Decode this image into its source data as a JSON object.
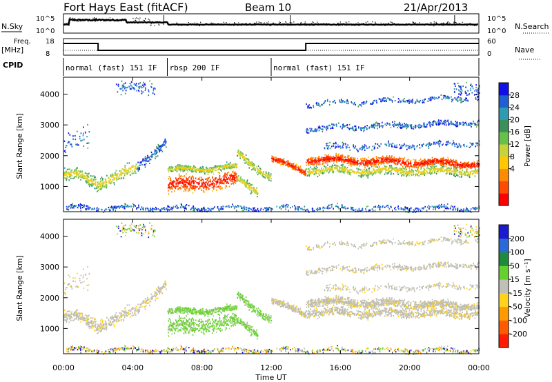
{
  "header": {
    "station": "Fort Hays East (fitACF)",
    "beam": "Beam 10",
    "date": "21/Apr/2013"
  },
  "panels": {
    "nsky_label": "N.Sky",
    "nsearch_label": "N.Search",
    "nsky_ticks": [
      "10^5",
      "10^0"
    ],
    "nsearch_ticks": [
      "10^5",
      "10^0"
    ],
    "freq_label_1": "Freq.",
    "freq_label_2": "[MHz]",
    "freq_ticks": [
      "18",
      "8"
    ],
    "nave_label": "Nave",
    "nave_ticks": [
      "60",
      "0"
    ],
    "cpid_label": "CPID",
    "cpid_segments": [
      {
        "label": "normal (fast) 151 IF",
        "start": 0,
        "end": 6
      },
      {
        "label": "rbsp 200 IF",
        "start": 6,
        "end": 12
      },
      {
        "label": "normal (fast) 151 IF",
        "start": 12,
        "end": 24
      }
    ]
  },
  "chart_data": [
    {
      "type": "heatmap",
      "name": "power",
      "ylabel": "Slant Range [km]",
      "ylim": [
        180,
        4550
      ],
      "yticks": [
        "1000",
        "2000",
        "3000",
        "4000"
      ],
      "colorbar_label": "Power [dB]",
      "colorbar_ticks": [
        "28",
        "24",
        "20",
        "16",
        "12",
        "8",
        "4"
      ],
      "colorbar_colors": [
        "#1010e6",
        "#1f5fd0",
        "#2e9bb0",
        "#3d8f5a",
        "#66c04a",
        "#c8d23a",
        "#ffc800",
        "#ff8c00",
        "#ff4a00",
        "#ff0000"
      ]
    },
    {
      "type": "heatmap",
      "name": "velocity",
      "ylabel": "Slant Range [km]",
      "ylim": [
        180,
        4550
      ],
      "yticks": [
        "1000",
        "2000",
        "3000",
        "4000"
      ],
      "colorbar_label": "Velocity [m s⁻¹]",
      "colorbar_ticks": [
        "200",
        "100",
        "50",
        "15",
        "-15",
        "-50",
        "-100",
        "-200"
      ],
      "colorbar_colors": [
        "#1a1ad0",
        "#2a6ad8",
        "#1f8a3a",
        "#66d030",
        "#c0c0b8",
        "#ffd21e",
        "#ff9a00",
        "#ff5a00",
        "#ff1a00"
      ]
    }
  ],
  "xaxis": {
    "label": "Time UT",
    "xlim": [
      0,
      24
    ],
    "ticks": [
      "00:00",
      "04:00",
      "08:00",
      "12:00",
      "16:00",
      "20:00",
      "00:00"
    ]
  }
}
